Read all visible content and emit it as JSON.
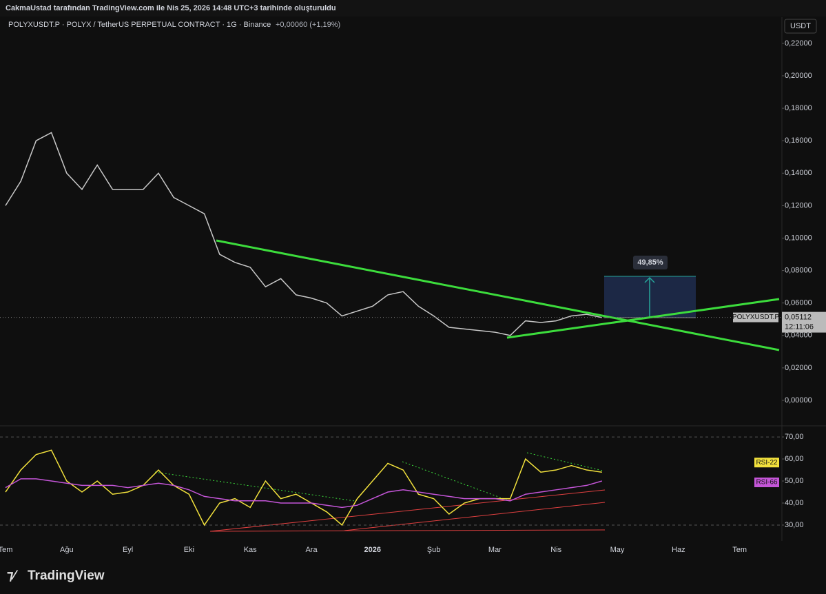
{
  "header": {
    "title": "CakmaUstad tarafından TradingView.com ile Nis 25, 2026 14:48 UTC+3 tarihinde oluşturuldu"
  },
  "chart_data": [
    {
      "type": "line",
      "title": "POLYXUSDT.P · POLYX / TetherUS PERPETUAL CONTRACT · 1G · Binance",
      "subtitle": "+0,00060 (+1,19%)",
      "currency": "USDT",
      "categories": [
        "Tem",
        null,
        null,
        null,
        "Ağu",
        null,
        null,
        null,
        "Eyl",
        null,
        null,
        null,
        "Eki",
        null,
        null,
        null,
        "Kas",
        null,
        null,
        null,
        "Ara",
        null,
        null,
        null,
        "2026",
        null,
        null,
        null,
        "Şub",
        null,
        null,
        null,
        "Mar",
        null,
        null,
        null,
        "Nis",
        null,
        null,
        null,
        "May",
        null,
        null,
        null,
        "Haz",
        null,
        null,
        null,
        "Tem"
      ],
      "series": [
        {
          "name": "POLYXUSDT.P",
          "color": "#c8c8c8",
          "values": [
            0.12,
            0.135,
            0.16,
            0.165,
            0.14,
            0.13,
            0.145,
            0.13,
            0.13,
            0.13,
            0.14,
            0.125,
            0.12,
            0.115,
            0.09,
            0.085,
            0.082,
            0.07,
            0.075,
            0.065,
            0.063,
            0.06,
            0.052,
            0.055,
            0.058,
            0.065,
            0.067,
            0.058,
            0.052,
            0.045,
            0.044,
            0.043,
            0.042,
            0.04,
            0.049,
            0.048,
            0.049,
            0.052,
            0.053,
            0.051,
            null,
            null,
            null,
            null,
            null,
            null,
            null,
            null,
            null
          ]
        }
      ],
      "ylim": [
        -0.0153,
        0.2361
      ],
      "yticks": [
        {
          "value": 0,
          "label": "0,00000"
        },
        {
          "value": 0.02,
          "label": "0,02000"
        },
        {
          "value": 0.04,
          "label": "0,04000"
        },
        {
          "value": 0.06,
          "label": "0,06000"
        },
        {
          "value": 0.08,
          "label": "0,08000"
        },
        {
          "value": 0.1,
          "label": "0,10000"
        },
        {
          "value": 0.12,
          "label": "0,12000"
        },
        {
          "value": 0.14,
          "label": "0,14000"
        },
        {
          "value": 0.16,
          "label": "0,16000"
        },
        {
          "value": 0.18,
          "label": "0,18000"
        },
        {
          "value": 0.2,
          "label": "0,20000"
        },
        {
          "value": 0.22,
          "label": "0,22000"
        }
      ],
      "last_price": {
        "value": 0.05112,
        "label": "0,05112"
      },
      "countdown": "12:11:06",
      "annotation": "49,85%"
    },
    {
      "type": "line",
      "series": [
        {
          "name": "RSI-22",
          "color": "#f2e13c",
          "values": [
            45,
            55,
            62,
            64,
            50,
            45,
            50,
            44,
            45,
            48,
            55,
            48,
            44,
            30,
            40,
            42,
            38,
            50,
            42,
            44,
            40,
            36,
            30,
            42,
            50,
            58,
            55,
            44,
            42,
            35,
            40,
            42,
            42,
            42,
            60,
            54,
            55,
            57,
            55,
            54,
            null,
            null,
            null,
            null,
            null,
            null,
            null,
            null,
            null
          ]
        },
        {
          "name": "RSI-66",
          "color": "#c455d8",
          "values": [
            47,
            51,
            51,
            50,
            49,
            48,
            48,
            48,
            47,
            48,
            49,
            48,
            46,
            43,
            42,
            41,
            41,
            41,
            40,
            40,
            40,
            39,
            38,
            39,
            42,
            45,
            46,
            45,
            44,
            43,
            42,
            42,
            42,
            41,
            44,
            45,
            46,
            47,
            48,
            50,
            null,
            null,
            null,
            null,
            null,
            null,
            null,
            null,
            null
          ]
        }
      ],
      "ylim": [
        22.8,
        74.4
      ],
      "yticks": [
        {
          "value": 30,
          "label": "30,00"
        },
        {
          "value": 40,
          "label": "40,00"
        },
        {
          "value": 50,
          "label": "50,00"
        },
        {
          "value": 60,
          "label": "60,00"
        },
        {
          "value": 70,
          "label": "70,00"
        }
      ]
    }
  ],
  "footer": {
    "brand": "TradingView"
  }
}
